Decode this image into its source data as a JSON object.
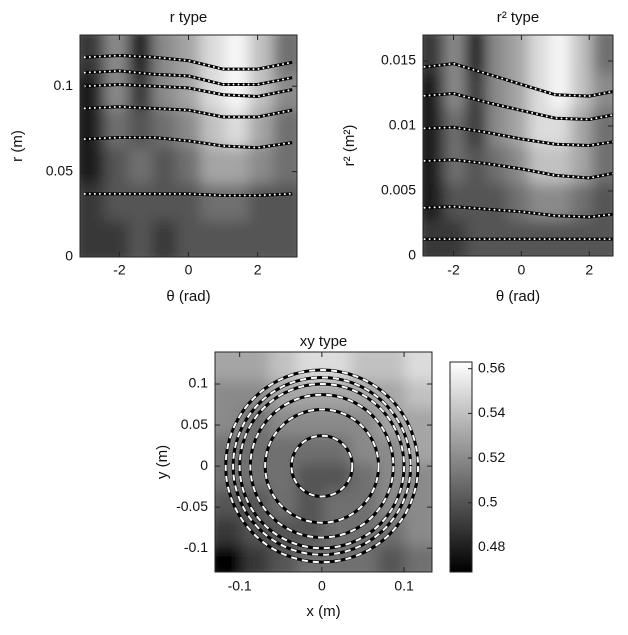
{
  "chart_data": [
    {
      "type": "heatmap",
      "title": "r type",
      "x_label": "θ (rad)",
      "y_label": "r (m)",
      "xlim": [
        -3.14,
        3.14
      ],
      "ylim": [
        0,
        0.13
      ],
      "xticks": [
        -2,
        0,
        2
      ],
      "yticks": [
        0,
        0.05,
        0.1
      ],
      "z": [
        [
          0.49,
          0.49,
          0.5,
          0.49,
          0.5,
          0.5,
          0.5,
          0.5,
          0.5
        ],
        [
          0.49,
          0.5,
          0.5,
          0.5,
          0.5,
          0.51,
          0.51,
          0.5,
          0.5
        ],
        [
          0.48,
          0.5,
          0.51,
          0.5,
          0.51,
          0.53,
          0.53,
          0.52,
          0.51
        ],
        [
          0.48,
          0.51,
          0.5,
          0.51,
          0.52,
          0.54,
          0.55,
          0.53,
          0.51
        ],
        [
          0.48,
          0.52,
          0.49,
          0.52,
          0.53,
          0.55,
          0.56,
          0.54,
          0.52
        ],
        [
          0.49,
          0.52,
          0.48,
          0.52,
          0.53,
          0.55,
          0.56,
          0.54,
          0.51
        ]
      ],
      "x": [
        -3,
        -2,
        -1,
        0,
        1,
        2,
        3
      ],
      "series": [
        {
          "values": [
            0.037,
            0.037,
            0.037,
            0.037,
            0.036,
            0.036,
            0.037
          ]
        },
        {
          "values": [
            0.069,
            0.07,
            0.07,
            0.068,
            0.065,
            0.064,
            0.067
          ]
        },
        {
          "values": [
            0.087,
            0.088,
            0.087,
            0.086,
            0.082,
            0.082,
            0.086
          ]
        },
        {
          "values": [
            0.1,
            0.101,
            0.1,
            0.099,
            0.095,
            0.094,
            0.098
          ]
        },
        {
          "values": [
            0.108,
            0.109,
            0.107,
            0.106,
            0.101,
            0.101,
            0.105
          ]
        },
        {
          "values": [
            0.117,
            0.118,
            0.117,
            0.115,
            0.11,
            0.11,
            0.114
          ]
        }
      ]
    },
    {
      "type": "heatmap",
      "title": "r² type",
      "x_label": "θ (rad)",
      "y_label": "r² (m²)",
      "xlim": [
        -2.9,
        2.7
      ],
      "ylim": [
        0,
        0.017
      ],
      "xticks": [
        -2,
        0,
        2
      ],
      "yticks": [
        0,
        0.005,
        0.01,
        0.015
      ],
      "z": [
        [
          0.49,
          0.49,
          0.5,
          0.5,
          0.5,
          0.5,
          0.5,
          0.5,
          0.5
        ],
        [
          0.48,
          0.5,
          0.5,
          0.5,
          0.51,
          0.52,
          0.52,
          0.51,
          0.5
        ],
        [
          0.48,
          0.51,
          0.5,
          0.51,
          0.52,
          0.54,
          0.54,
          0.53,
          0.51
        ],
        [
          0.48,
          0.51,
          0.49,
          0.52,
          0.53,
          0.55,
          0.55,
          0.53,
          0.51
        ],
        [
          0.48,
          0.52,
          0.49,
          0.52,
          0.53,
          0.55,
          0.56,
          0.54,
          0.52
        ],
        [
          0.49,
          0.52,
          0.48,
          0.52,
          0.53,
          0.55,
          0.56,
          0.54,
          0.51
        ]
      ],
      "x": [
        -3,
        -2,
        -1,
        0,
        1,
        2,
        3
      ],
      "series": [
        {
          "values": [
            0.0013,
            0.0013,
            0.0013,
            0.0013,
            0.0013,
            0.0013,
            0.0013
          ]
        },
        {
          "values": [
            0.0037,
            0.0038,
            0.0036,
            0.0034,
            0.0031,
            0.003,
            0.0033
          ]
        },
        {
          "values": [
            0.0073,
            0.0074,
            0.0071,
            0.0067,
            0.0062,
            0.006,
            0.0065
          ]
        },
        {
          "values": [
            0.0098,
            0.0099,
            0.0095,
            0.009,
            0.0086,
            0.0085,
            0.0089
          ]
        },
        {
          "values": [
            0.0123,
            0.0125,
            0.0118,
            0.0112,
            0.0106,
            0.0105,
            0.011
          ]
        },
        {
          "values": [
            0.0145,
            0.0148,
            0.014,
            0.0132,
            0.0124,
            0.0123,
            0.0128
          ]
        }
      ]
    },
    {
      "type": "heatmap",
      "title": "xy type",
      "x_label": "x (m)",
      "y_label": "y (m)",
      "xlim": [
        -0.13,
        0.134
      ],
      "ylim": [
        -0.129,
        0.139
      ],
      "xticks": [
        -0.1,
        0,
        0.1
      ],
      "yticks": [
        -0.1,
        -0.05,
        0,
        0.05,
        0.1
      ],
      "z": [
        [
          0.47,
          0.49,
          0.5,
          0.51,
          0.51,
          0.51,
          0.5,
          0.51
        ],
        [
          0.49,
          0.5,
          0.5,
          0.5,
          0.51,
          0.51,
          0.51,
          0.52
        ],
        [
          0.5,
          0.5,
          0.51,
          0.5,
          0.51,
          0.51,
          0.52,
          0.52
        ],
        [
          0.51,
          0.51,
          0.51,
          0.5,
          0.5,
          0.51,
          0.52,
          0.52
        ],
        [
          0.51,
          0.51,
          0.51,
          0.51,
          0.51,
          0.52,
          0.52,
          0.53
        ],
        [
          0.52,
          0.51,
          0.52,
          0.52,
          0.52,
          0.52,
          0.53,
          0.53
        ],
        [
          0.52,
          0.52,
          0.53,
          0.53,
          0.53,
          0.53,
          0.53,
          0.54
        ],
        [
          0.53,
          0.53,
          0.54,
          0.55,
          0.55,
          0.54,
          0.54,
          0.55
        ]
      ],
      "radii": [
        0.037,
        0.069,
        0.087,
        0.1,
        0.108,
        0.117
      ],
      "clim": [
        0.469,
        0.563
      ],
      "colorbar_ticks": [
        0.48,
        0.5,
        0.52,
        0.54,
        0.56
      ]
    }
  ]
}
